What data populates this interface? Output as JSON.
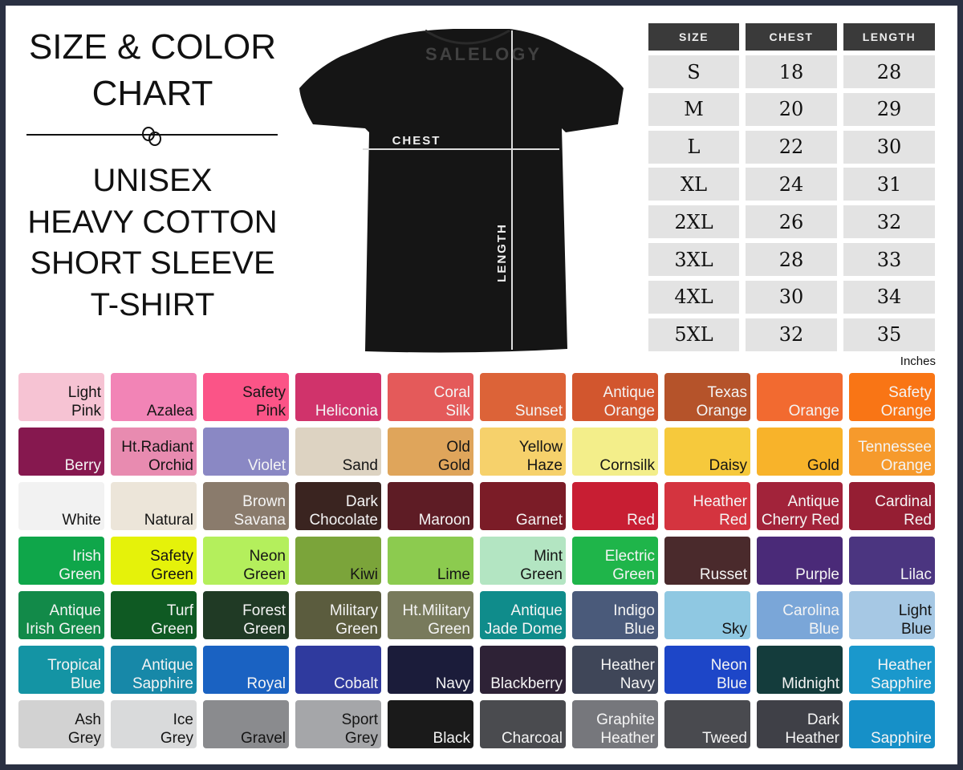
{
  "title": {
    "line1": "SIZE & COLOR",
    "line2": "CHART",
    "product": [
      "UNISEX",
      "HEAVY COTTON",
      "SHORT SLEEVE",
      "T-SHIRT"
    ]
  },
  "shirt": {
    "chest_label": "CHEST",
    "length_label": "LENGTH",
    "color": "#151515"
  },
  "watermark": "SALELOGY",
  "size_table": {
    "headers": [
      "SIZE",
      "CHEST",
      "LENGTH"
    ],
    "rows": [
      [
        "S",
        "18",
        "28"
      ],
      [
        "M",
        "20",
        "29"
      ],
      [
        "L",
        "22",
        "30"
      ],
      [
        "XL",
        "24",
        "31"
      ],
      [
        "2XL",
        "26",
        "32"
      ],
      [
        "3XL",
        "28",
        "33"
      ],
      [
        "4XL",
        "30",
        "34"
      ],
      [
        "5XL",
        "32",
        "35"
      ]
    ],
    "units": "Inches"
  },
  "colors": [
    {
      "name": "Light Pink",
      "hex": "#f6c3d3",
      "text": "dark"
    },
    {
      "name": "Azalea",
      "hex": "#f284b6",
      "text": "dark"
    },
    {
      "name": "Safety Pink",
      "hex": "#fb5487",
      "text": "dark"
    },
    {
      "name": "Heliconia",
      "hex": "#d0336b",
      "text": "light"
    },
    {
      "name": "Coral Silk",
      "hex": "#e45a5a",
      "text": "light"
    },
    {
      "name": "Sunset",
      "hex": "#dc6338",
      "text": "light"
    },
    {
      "name": "Antique Orange",
      "hex": "#d2562e",
      "text": "light"
    },
    {
      "name": "Texas Orange",
      "hex": "#b5532a",
      "text": "light"
    },
    {
      "name": "Orange",
      "hex": "#f26a30",
      "text": "light"
    },
    {
      "name": "Safety Orange",
      "hex": "#f97515",
      "text": "light"
    },
    {
      "name": "Berry",
      "hex": "#86184f",
      "text": "light"
    },
    {
      "name": "Ht.Radiant Orchid",
      "hex": "#e88bb0",
      "text": "dark"
    },
    {
      "name": "Violet",
      "hex": "#8a88c4",
      "text": "light"
    },
    {
      "name": "Sand",
      "hex": "#ddd3c2",
      "text": "dark"
    },
    {
      "name": "Old Gold",
      "hex": "#dfa55b",
      "text": "dark"
    },
    {
      "name": "Yellow Haze",
      "hex": "#f6d16b",
      "text": "dark"
    },
    {
      "name": "Cornsilk",
      "hex": "#f3ee8a",
      "text": "dark"
    },
    {
      "name": "Daisy",
      "hex": "#f6c93c",
      "text": "dark"
    },
    {
      "name": "Gold",
      "hex": "#f8b32a",
      "text": "dark"
    },
    {
      "name": "Tennessee Orange",
      "hex": "#f69a2c",
      "text": "light"
    },
    {
      "name": "White",
      "hex": "#f2f2f2",
      "text": "dark"
    },
    {
      "name": "Natural",
      "hex": "#ece5d9",
      "text": "dark"
    },
    {
      "name": "Brown Savana",
      "hex": "#8a7b6c",
      "text": "light"
    },
    {
      "name": "Dark Chocolate",
      "hex": "#3a2420",
      "text": "light"
    },
    {
      "name": "Maroon",
      "hex": "#5e1c25",
      "text": "light"
    },
    {
      "name": "Garnet",
      "hex": "#7b1c27",
      "text": "light"
    },
    {
      "name": "Red",
      "hex": "#c81e33",
      "text": "light"
    },
    {
      "name": "Heather Red",
      "hex": "#d4343f",
      "text": "light"
    },
    {
      "name": "Antique Cherry Red",
      "hex": "#a2233a",
      "text": "light"
    },
    {
      "name": "Cardinal Red",
      "hex": "#951e33",
      "text": "light"
    },
    {
      "name": "Irish Green",
      "hex": "#0fa64a",
      "text": "light"
    },
    {
      "name": "Safety Green",
      "hex": "#e5f20a",
      "text": "dark"
    },
    {
      "name": "Neon Green",
      "hex": "#b4ef5c",
      "text": "dark"
    },
    {
      "name": "Kiwi",
      "hex": "#7ba43a",
      "text": "dark"
    },
    {
      "name": "Lime",
      "hex": "#8ccb4f",
      "text": "dark"
    },
    {
      "name": "Mint Green",
      "hex": "#b3e5c2",
      "text": "dark"
    },
    {
      "name": "Electric Green",
      "hex": "#1fb54a",
      "text": "light"
    },
    {
      "name": "Russet",
      "hex": "#4a2a2c",
      "text": "light"
    },
    {
      "name": "Purple",
      "hex": "#4a2a78",
      "text": "light"
    },
    {
      "name": "Lilac",
      "hex": "#4b3580",
      "text": "light"
    },
    {
      "name": "Antique Irish Green",
      "hex": "#128a49",
      "text": "light"
    },
    {
      "name": "Turf Green",
      "hex": "#0f5a23",
      "text": "light"
    },
    {
      "name": "Forest Green",
      "hex": "#203a25",
      "text": "light"
    },
    {
      "name": "Military Green",
      "hex": "#5b5c3e",
      "text": "light"
    },
    {
      "name": "Ht.Military Green",
      "hex": "#787a5c",
      "text": "light"
    },
    {
      "name": "Antique Jade Dome",
      "hex": "#0f8c8b",
      "text": "light"
    },
    {
      "name": "Indigo Blue",
      "hex": "#4a5a7a",
      "text": "light"
    },
    {
      "name": "Sky",
      "hex": "#8fc8e2",
      "text": "dark"
    },
    {
      "name": "Carolina Blue",
      "hex": "#7aa6d8",
      "text": "light"
    },
    {
      "name": "Light Blue",
      "hex": "#a6c8e4",
      "text": "dark"
    },
    {
      "name": "Tropical Blue",
      "hex": "#1494a4",
      "text": "light"
    },
    {
      "name": "Antique Sapphire",
      "hex": "#1788a8",
      "text": "light"
    },
    {
      "name": "Royal",
      "hex": "#1a62c2",
      "text": "light"
    },
    {
      "name": "Cobalt",
      "hex": "#2f3a9e",
      "text": "light"
    },
    {
      "name": "Navy",
      "hex": "#1b1c3a",
      "text": "light"
    },
    {
      "name": "Blackberry",
      "hex": "#2e2236",
      "text": "light"
    },
    {
      "name": "Heather Navy",
      "hex": "#3f4658",
      "text": "light"
    },
    {
      "name": "Neon Blue",
      "hex": "#1d46c8",
      "text": "light"
    },
    {
      "name": "Midnight",
      "hex": "#143c3c",
      "text": "light"
    },
    {
      "name": "Heather Sapphire",
      "hex": "#1a98cc",
      "text": "light"
    },
    {
      "name": "Ash Grey",
      "hex": "#d2d2d2",
      "text": "dark"
    },
    {
      "name": "Ice Grey",
      "hex": "#d9dadb",
      "text": "dark"
    },
    {
      "name": "Gravel",
      "hex": "#8a8b8e",
      "text": "dark"
    },
    {
      "name": "Sport Grey",
      "hex": "#a5a6a9",
      "text": "dark"
    },
    {
      "name": "Black",
      "hex": "#1a1a1a",
      "text": "light"
    },
    {
      "name": "Charcoal",
      "hex": "#4a4b4f",
      "text": "light"
    },
    {
      "name": "Graphite Heather",
      "hex": "#76777c",
      "text": "light"
    },
    {
      "name": "Tweed",
      "hex": "#494a4f",
      "text": "light"
    },
    {
      "name": "Dark Heather",
      "hex": "#3f4047",
      "text": "light"
    },
    {
      "name": "Sapphire",
      "hex": "#1690c8",
      "text": "light"
    }
  ]
}
